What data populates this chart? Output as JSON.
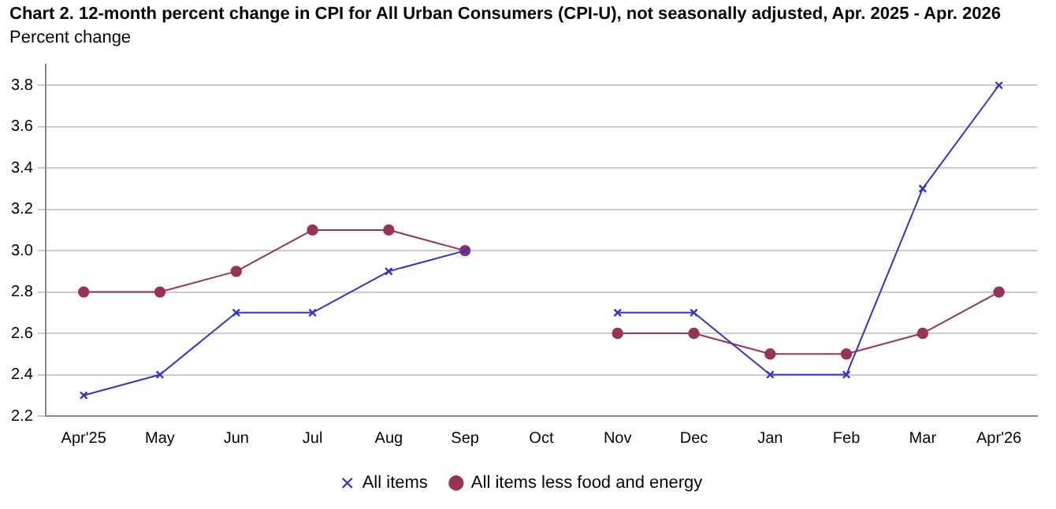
{
  "chart_data": {
    "type": "line",
    "title": "Chart 2. 12-month percent change in CPI for All Urban Consumers (CPI-U), not seasonally adjusted, Apr. 2025 - Apr. 2026",
    "ylabel": "Percent change",
    "categories": [
      "Apr'25",
      "May",
      "Jun",
      "Jul",
      "Aug",
      "Sep",
      "Oct",
      "Nov",
      "Dec",
      "Jan",
      "Feb",
      "Mar",
      "Apr'26"
    ],
    "series": [
      {
        "name": "All items",
        "color": "#3333cc",
        "marker": "cross",
        "values": [
          2.3,
          2.4,
          2.7,
          2.7,
          2.9,
          3.0,
          null,
          2.7,
          2.7,
          2.4,
          2.4,
          3.3,
          3.8
        ]
      },
      {
        "name": "All items less food and energy",
        "color": "#993355",
        "marker": "circle",
        "values": [
          2.8,
          2.8,
          2.9,
          3.1,
          3.1,
          3.0,
          null,
          2.6,
          2.6,
          2.5,
          2.5,
          2.6,
          2.8
        ]
      }
    ],
    "ylim": [
      2.2,
      3.9
    ],
    "yticks": [
      2.2,
      2.4,
      2.6,
      2.8,
      {
        "value": 3,
        "label": "3.0"
      },
      3.2,
      3.4,
      3.6,
      3.8
    ],
    "grid": "y",
    "legend": "bottom",
    "line_style": "solid"
  }
}
